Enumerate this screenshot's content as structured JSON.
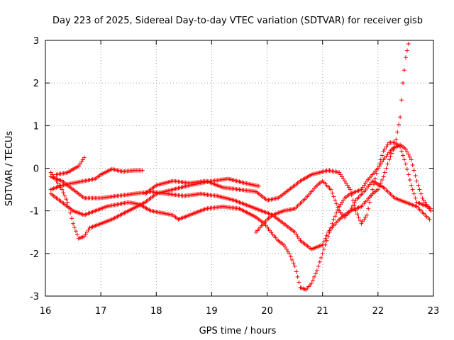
{
  "chart_data": {
    "type": "scatter",
    "title": "Day 223 of 2025, Sidereal Day-to-day VTEC variation (SDTVAR) for receiver gisb",
    "xlabel": "GPS time / hours",
    "ylabel": "SDTVAR / TECUs",
    "xlim": [
      16,
      23
    ],
    "ylim": [
      -3,
      3
    ],
    "xticks": [
      16,
      17,
      18,
      19,
      20,
      21,
      22,
      23
    ],
    "yticks": [
      -3,
      -2,
      -1,
      0,
      1,
      2,
      3
    ],
    "xtick_labels": [
      "16",
      "17",
      "18",
      "19",
      "20",
      "21",
      "22",
      "23"
    ],
    "ytick_labels": [
      "-3",
      "-2",
      "-1",
      "0",
      "1",
      "2",
      "3"
    ],
    "grid": true,
    "marker": "+",
    "color": "#ff0000",
    "series": [
      {
        "name": "s1",
        "points": [
          [
            16.1,
            -0.1
          ],
          [
            16.2,
            -0.3
          ],
          [
            16.3,
            -0.5
          ],
          [
            16.4,
            -0.8
          ],
          [
            16.5,
            -1.3
          ],
          [
            16.6,
            -1.65
          ],
          [
            16.7,
            -1.6
          ],
          [
            16.8,
            -1.4
          ],
          [
            17.0,
            -1.3
          ],
          [
            17.2,
            -1.2
          ],
          [
            17.5,
            -1.0
          ],
          [
            17.8,
            -0.8
          ],
          [
            18.0,
            -0.6
          ],
          [
            18.3,
            -0.5
          ],
          [
            18.6,
            -0.4
          ],
          [
            19.0,
            -0.3
          ],
          [
            19.3,
            -0.25
          ],
          [
            19.6,
            -0.35
          ],
          [
            19.85,
            -0.42
          ]
        ]
      },
      {
        "name": "s2",
        "points": [
          [
            16.1,
            -0.2
          ],
          [
            16.3,
            -0.3
          ],
          [
            16.5,
            -0.5
          ],
          [
            16.7,
            -0.7
          ],
          [
            17.0,
            -0.7
          ],
          [
            17.3,
            -0.65
          ],
          [
            17.6,
            -0.6
          ],
          [
            17.9,
            -0.55
          ],
          [
            18.2,
            -0.6
          ],
          [
            18.5,
            -0.65
          ],
          [
            18.8,
            -0.6
          ],
          [
            19.1,
            -0.65
          ],
          [
            19.4,
            -0.75
          ],
          [
            19.7,
            -0.9
          ],
          [
            19.9,
            -1.0
          ],
          [
            20.1,
            -1.1
          ],
          [
            20.3,
            -1.3
          ],
          [
            20.5,
            -1.5
          ],
          [
            20.6,
            -1.7
          ],
          [
            20.8,
            -1.9
          ],
          [
            21.0,
            -1.8
          ],
          [
            21.1,
            -1.5
          ],
          [
            21.3,
            -1.2
          ],
          [
            21.5,
            -1.0
          ],
          [
            21.7,
            -0.9
          ],
          [
            21.9,
            -0.6
          ],
          [
            22.0,
            -0.5
          ],
          [
            22.1,
            -0.2
          ],
          [
            22.2,
            0.2
          ],
          [
            22.3,
            0.5
          ],
          [
            22.4,
            1.2
          ],
          [
            22.45,
            2.0
          ],
          [
            22.5,
            2.6
          ],
          [
            22.55,
            2.92
          ]
        ]
      },
      {
        "name": "s3",
        "points": [
          [
            16.1,
            -0.6
          ],
          [
            16.3,
            -0.8
          ],
          [
            16.5,
            -1.0
          ],
          [
            16.7,
            -1.1
          ],
          [
            16.9,
            -1.0
          ],
          [
            17.1,
            -0.9
          ],
          [
            17.3,
            -0.85
          ],
          [
            17.5,
            -0.8
          ],
          [
            17.7,
            -0.85
          ],
          [
            17.9,
            -1.0
          ],
          [
            18.1,
            -1.05
          ],
          [
            18.3,
            -1.1
          ],
          [
            18.4,
            -1.2
          ],
          [
            18.6,
            -1.1
          ],
          [
            18.9,
            -0.95
          ],
          [
            19.2,
            -0.9
          ],
          [
            19.5,
            -0.95
          ],
          [
            19.8,
            -1.15
          ],
          [
            19.95,
            -1.3
          ],
          [
            20.1,
            -1.55
          ],
          [
            20.2,
            -1.7
          ],
          [
            20.3,
            -1.8
          ],
          [
            20.4,
            -2.0
          ],
          [
            20.5,
            -2.3
          ],
          [
            20.55,
            -2.55
          ],
          [
            20.6,
            -2.8
          ],
          [
            20.7,
            -2.85
          ],
          [
            20.8,
            -2.7
          ],
          [
            20.9,
            -2.4
          ],
          [
            21.0,
            -2.0
          ],
          [
            21.1,
            -1.6
          ],
          [
            21.2,
            -1.2
          ],
          [
            21.3,
            -0.9
          ],
          [
            21.4,
            -0.7
          ],
          [
            21.5,
            -0.6
          ],
          [
            21.7,
            -0.5
          ],
          [
            21.8,
            -0.3
          ],
          [
            22.0,
            0.0
          ],
          [
            22.1,
            0.2
          ],
          [
            22.25,
            0.45
          ],
          [
            22.4,
            0.55
          ],
          [
            22.5,
            0.45
          ],
          [
            22.6,
            0.2
          ],
          [
            22.7,
            -0.3
          ],
          [
            22.8,
            -0.7
          ],
          [
            22.9,
            -0.9
          ],
          [
            22.95,
            -1.0
          ]
        ]
      },
      {
        "name": "s4",
        "points": [
          [
            16.1,
            -0.5
          ],
          [
            16.3,
            -0.4
          ],
          [
            16.5,
            -0.35
          ],
          [
            16.7,
            -0.3
          ],
          [
            16.9,
            -0.25
          ],
          [
            17.0,
            -0.15
          ],
          [
            17.2,
            -0.02
          ],
          [
            17.4,
            -0.08
          ],
          [
            17.6,
            -0.05
          ],
          [
            17.75,
            -0.05
          ]
        ]
      },
      {
        "name": "s5",
        "points": [
          [
            16.2,
            -0.15
          ],
          [
            16.4,
            -0.1
          ],
          [
            16.6,
            0.05
          ],
          [
            16.7,
            0.25
          ]
        ]
      },
      {
        "name": "s6",
        "points": [
          [
            17.8,
            -0.6
          ],
          [
            18.0,
            -0.4
          ],
          [
            18.3,
            -0.3
          ],
          [
            18.6,
            -0.35
          ],
          [
            18.9,
            -0.3
          ],
          [
            19.2,
            -0.45
          ],
          [
            19.5,
            -0.5
          ],
          [
            19.8,
            -0.55
          ],
          [
            20.0,
            -0.75
          ],
          [
            20.2,
            -0.7
          ],
          [
            20.4,
            -0.5
          ],
          [
            20.6,
            -0.3
          ],
          [
            20.8,
            -0.15
          ],
          [
            20.95,
            -0.1
          ],
          [
            21.1,
            -0.05
          ],
          [
            21.3,
            -0.1
          ],
          [
            21.5,
            -0.5
          ],
          [
            21.6,
            -1.0
          ],
          [
            21.7,
            -1.3
          ],
          [
            21.8,
            -1.1
          ],
          [
            21.9,
            -0.5
          ],
          [
            22.0,
            0.0
          ],
          [
            22.1,
            0.4
          ],
          [
            22.2,
            0.6
          ],
          [
            22.3,
            0.6
          ],
          [
            22.4,
            0.5
          ],
          [
            22.5,
            0.1
          ],
          [
            22.6,
            -0.4
          ],
          [
            22.7,
            -0.8
          ],
          [
            22.8,
            -0.85
          ],
          [
            22.9,
            -0.9
          ],
          [
            22.95,
            -0.95
          ]
        ]
      },
      {
        "name": "s7",
        "points": [
          [
            19.8,
            -1.5
          ],
          [
            19.9,
            -1.35
          ],
          [
            20.0,
            -1.2
          ],
          [
            20.1,
            -1.1
          ],
          [
            20.3,
            -1.0
          ],
          [
            20.5,
            -0.95
          ],
          [
            20.7,
            -0.7
          ],
          [
            20.9,
            -0.4
          ],
          [
            21.0,
            -0.3
          ],
          [
            21.15,
            -0.5
          ],
          [
            21.3,
            -1.0
          ],
          [
            21.4,
            -1.15
          ],
          [
            21.5,
            -1.0
          ],
          [
            21.6,
            -0.75
          ],
          [
            21.75,
            -0.55
          ],
          [
            21.9,
            -0.3
          ],
          [
            22.1,
            -0.45
          ],
          [
            22.3,
            -0.7
          ],
          [
            22.5,
            -0.8
          ],
          [
            22.7,
            -0.9
          ],
          [
            22.85,
            -1.1
          ],
          [
            22.93,
            -1.2
          ]
        ]
      }
    ]
  }
}
